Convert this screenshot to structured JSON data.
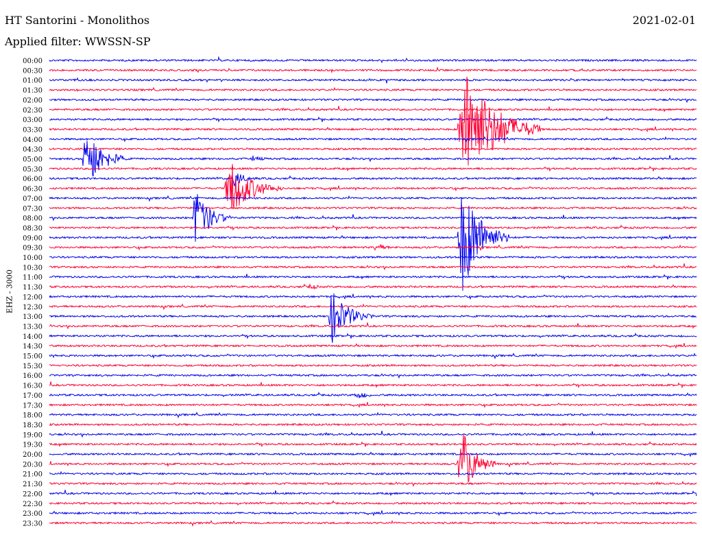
{
  "header": {
    "title": "HT Santorini - Monolithos",
    "date": "2021-02-01",
    "filter": "Applied filter: WWSSN-SP"
  },
  "chart_data": {
    "type": "line",
    "title": "HT Santorini - Monolithos",
    "subtitle": "Applied filter: WWSSN-SP",
    "ylabel": "EHZ - 3000",
    "xlabel": "",
    "date": "2021-02-01",
    "row_labels": [
      "00:00",
      "00:30",
      "01:00",
      "01:30",
      "02:00",
      "02:30",
      "03:00",
      "03:30",
      "04:00",
      "04:30",
      "05:00",
      "05:30",
      "06:00",
      "06:30",
      "07:00",
      "07:30",
      "08:00",
      "08:30",
      "09:00",
      "09:30",
      "10:00",
      "10:30",
      "11:00",
      "11:30",
      "12:00",
      "12:30",
      "13:00",
      "13:30",
      "14:00",
      "14:30",
      "15:00",
      "15:30",
      "16:00",
      "16:30",
      "17:00",
      "17:30",
      "18:00",
      "18:30",
      "19:00",
      "19:30",
      "20:00",
      "20:30",
      "21:00",
      "21:30",
      "22:00",
      "22:30",
      "23:00",
      "23:30"
    ],
    "colors": [
      "#0000ee",
      "#ff0033"
    ],
    "events": [
      {
        "row": 10,
        "start": 0.05,
        "duration": 0.07,
        "amplitude": 48
      },
      {
        "row": 10,
        "start": 0.31,
        "duration": 0.05,
        "amplitude": 5
      },
      {
        "row": 12,
        "start": 0.28,
        "duration": 0.05,
        "amplitude": 12
      },
      {
        "row": 13,
        "start": 0.27,
        "duration": 0.09,
        "amplitude": 44
      },
      {
        "row": 16,
        "start": 0.22,
        "duration": 0.06,
        "amplitude": 45
      },
      {
        "row": 7,
        "start": 0.63,
        "duration": 0.13,
        "amplitude": 90
      },
      {
        "row": 18,
        "start": 0.63,
        "duration": 0.08,
        "amplitude": 85
      },
      {
        "row": 19,
        "start": 0.5,
        "duration": 0.05,
        "amplitude": 6
      },
      {
        "row": 23,
        "start": 0.4,
        "duration": 0.03,
        "amplitude": 6
      },
      {
        "row": 26,
        "start": 0.43,
        "duration": 0.07,
        "amplitude": 40
      },
      {
        "row": 34,
        "start": 0.47,
        "duration": 0.05,
        "amplitude": 7
      },
      {
        "row": 41,
        "start": 0.63,
        "duration": 0.06,
        "amplitude": 55
      }
    ]
  }
}
